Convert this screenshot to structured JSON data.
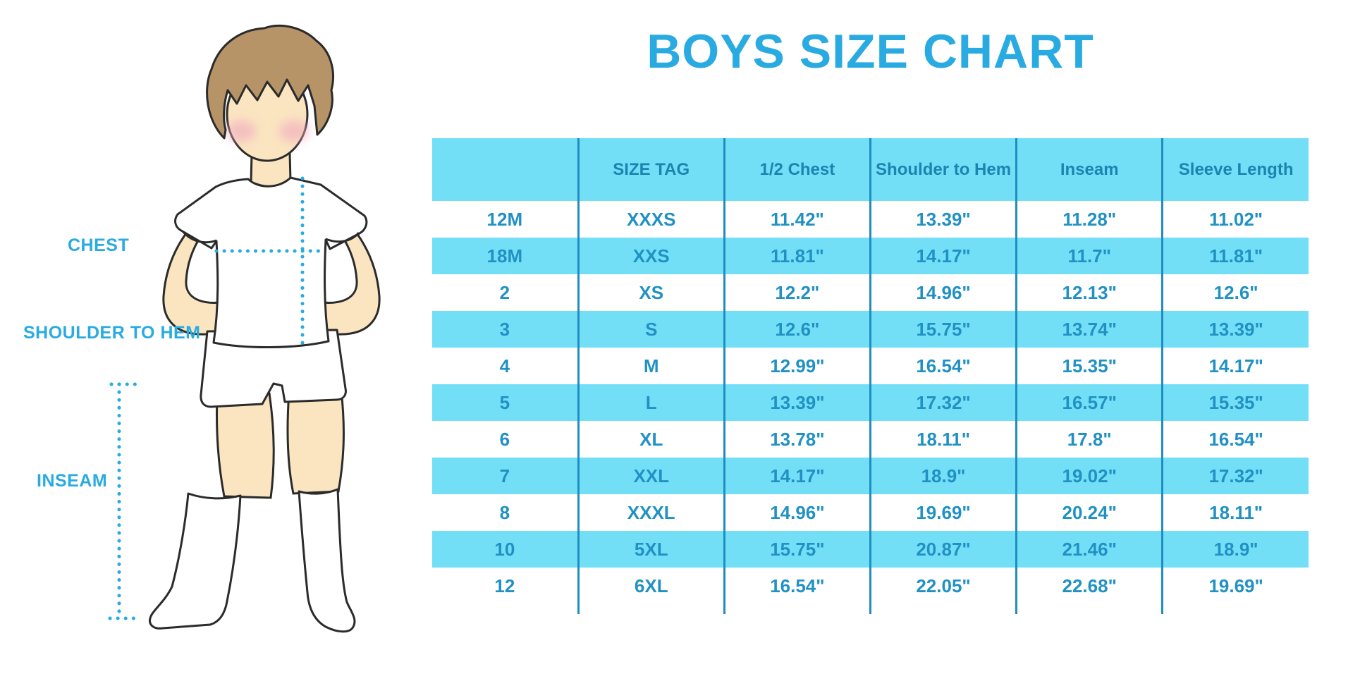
{
  "title": "BOYS SIZE CHART",
  "diagram": {
    "description": "cartoon boy wearing white t-shirt, shorts and knee socks with dotted measurement guides",
    "labels": {
      "chest": "CHEST",
      "shoulder_to_hem": "SHOULDER TO HEM",
      "inseam": "INSEAM"
    }
  },
  "colors": {
    "accent_blue": "#29ABE2",
    "table_header_bg": "#73DFF7",
    "table_row_alt_bg": "#73DFF7",
    "table_row_bg": "#FFFFFF",
    "table_header_text": "#1D83B0",
    "table_data_text": "#2191C4",
    "table_divider": "#1F8DC0",
    "skin": "#FAE5C0",
    "hair": "#B79468",
    "blush": "#F2ABC0",
    "outline": "#2B2B2B"
  },
  "chart_data": {
    "type": "table",
    "title": "BOYS SIZE CHART",
    "columns": [
      "",
      "SIZE TAG",
      "1/2 Chest",
      "Shoulder to Hem",
      "Inseam",
      "Sleeve Length"
    ],
    "rows": [
      [
        "12M",
        "XXXS",
        "11.42\"",
        "13.39\"",
        "11.28\"",
        "11.02\""
      ],
      [
        "18M",
        "XXS",
        "11.81\"",
        "14.17\"",
        "11.7\"",
        "11.81\""
      ],
      [
        "2",
        "XS",
        "12.2\"",
        "14.96\"",
        "12.13\"",
        "12.6\""
      ],
      [
        "3",
        "S",
        "12.6\"",
        "15.75\"",
        "13.74\"",
        "13.39\""
      ],
      [
        "4",
        "M",
        "12.99\"",
        "16.54\"",
        "15.35\"",
        "14.17\""
      ],
      [
        "5",
        "L",
        "13.39\"",
        "17.32\"",
        "16.57\"",
        "15.35\""
      ],
      [
        "6",
        "XL",
        "13.78\"",
        "18.11\"",
        "17.8\"",
        "16.54\""
      ],
      [
        "7",
        "XXL",
        "14.17\"",
        "18.9\"",
        "19.02\"",
        "17.32\""
      ],
      [
        "8",
        "XXXL",
        "14.96\"",
        "19.69\"",
        "20.24\"",
        "18.11\""
      ],
      [
        "10",
        "5XL",
        "15.75\"",
        "20.87\"",
        "21.46\"",
        "18.9\""
      ],
      [
        "12",
        "6XL",
        "16.54\"",
        "22.05\"",
        "22.68\"",
        "19.69\""
      ]
    ]
  }
}
